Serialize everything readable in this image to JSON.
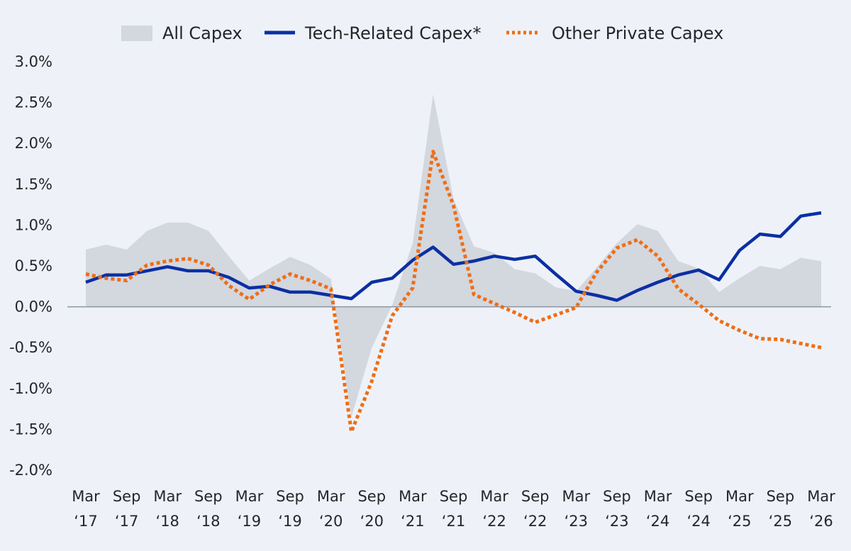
{
  "chart_data": {
    "type": "area",
    "legend": {
      "position": "top",
      "entries": [
        {
          "key": "all",
          "label": "All Capex"
        },
        {
          "key": "tech",
          "label": "Tech-Related Capex*"
        },
        {
          "key": "other",
          "label": "Other Private Capex"
        }
      ]
    },
    "colors": {
      "all": "#d3d7de",
      "tech": "#0b2fa3",
      "other": "#ef6d16",
      "zero_line": "#8b95a3",
      "background": "#eef2f8"
    },
    "y_ticks": [
      "3.0%",
      "2.5%",
      "2.0%",
      "1.5%",
      "1.0%",
      "0.5%",
      "0.0%",
      "-0.5%",
      "-1.0%",
      "-1.5%",
      "-2.0%"
    ],
    "ylim": [
      -2.0,
      3.0
    ],
    "x_ticks": [
      {
        "month": "Mar",
        "year": "‘17"
      },
      {
        "month": "Sep",
        "year": "‘17"
      },
      {
        "month": "Mar",
        "year": "‘18"
      },
      {
        "month": "Sep",
        "year": "‘18"
      },
      {
        "month": "Mar",
        "year": "‘19"
      },
      {
        "month": "Sep",
        "year": "‘19"
      },
      {
        "month": "Mar",
        "year": "‘20"
      },
      {
        "month": "Sep",
        "year": "‘20"
      },
      {
        "month": "Mar",
        "year": "‘21"
      },
      {
        "month": "Sep",
        "year": "‘21"
      },
      {
        "month": "Mar",
        "year": "‘22"
      },
      {
        "month": "Sep",
        "year": "‘22"
      },
      {
        "month": "Mar",
        "year": "‘23"
      },
      {
        "month": "Sep",
        "year": "‘23"
      },
      {
        "month": "Mar",
        "year": "‘24"
      },
      {
        "month": "Sep",
        "year": "‘24"
      },
      {
        "month": "Mar",
        "year": "‘25"
      },
      {
        "month": "Sep",
        "year": "‘25"
      },
      {
        "month": "Mar",
        "year": "‘26"
      }
    ],
    "x": [
      "Mar '17",
      "Jun '17",
      "Sep '17",
      "Dec '17",
      "Mar '18",
      "Jun '18",
      "Sep '18",
      "Dec '18",
      "Mar '19",
      "Jun '19",
      "Sep '19",
      "Dec '19",
      "Mar '20",
      "Jun '20",
      "Sep '20",
      "Dec '20",
      "Mar '21",
      "Jun '21",
      "Sep '21",
      "Dec '21",
      "Mar '22",
      "Jun '22",
      "Sep '22",
      "Dec '22",
      "Mar '23",
      "Jun '23",
      "Sep '23",
      "Dec '23",
      "Mar '24",
      "Jun '24",
      "Sep '24",
      "Dec '24",
      "Mar '25",
      "Jun '25",
      "Sep '25",
      "Dec '25",
      "Mar '26"
    ],
    "series": [
      {
        "name": "All Capex",
        "key": "all",
        "kind": "area",
        "values": [
          0.7,
          0.76,
          0.7,
          0.93,
          1.03,
          1.03,
          0.93,
          0.62,
          0.32,
          0.47,
          0.61,
          0.51,
          0.34,
          -1.35,
          -0.5,
          0.02,
          0.78,
          2.6,
          1.32,
          0.74,
          0.66,
          0.46,
          0.41,
          0.24,
          0.19,
          0.48,
          0.78,
          1.01,
          0.93,
          0.56,
          0.47,
          0.18,
          0.35,
          0.5,
          0.46,
          0.6,
          0.56
        ]
      },
      {
        "name": "Tech-Related Capex*",
        "key": "tech",
        "kind": "line",
        "values": [
          0.3,
          0.39,
          0.39,
          0.44,
          0.49,
          0.44,
          0.44,
          0.36,
          0.23,
          0.25,
          0.18,
          0.18,
          0.14,
          0.1,
          0.3,
          0.35,
          0.57,
          0.73,
          0.52,
          0.56,
          0.62,
          0.58,
          0.62,
          0.4,
          0.19,
          0.14,
          0.08,
          0.2,
          0.3,
          0.39,
          0.45,
          0.33,
          0.69,
          0.89,
          0.86,
          1.11,
          1.15
        ]
      },
      {
        "name": "Other Private Capex",
        "key": "other",
        "kind": "dotted-line",
        "values": [
          0.4,
          0.35,
          0.32,
          0.51,
          0.56,
          0.59,
          0.51,
          0.26,
          0.09,
          0.27,
          0.4,
          0.32,
          0.22,
          -1.53,
          -0.91,
          -0.11,
          0.23,
          1.9,
          1.24,
          0.15,
          0.04,
          -0.07,
          -0.19,
          -0.1,
          -0.01,
          0.42,
          0.72,
          0.82,
          0.62,
          0.22,
          0.03,
          -0.17,
          -0.29,
          -0.39,
          -0.4,
          -0.45,
          -0.5
        ]
      }
    ]
  }
}
